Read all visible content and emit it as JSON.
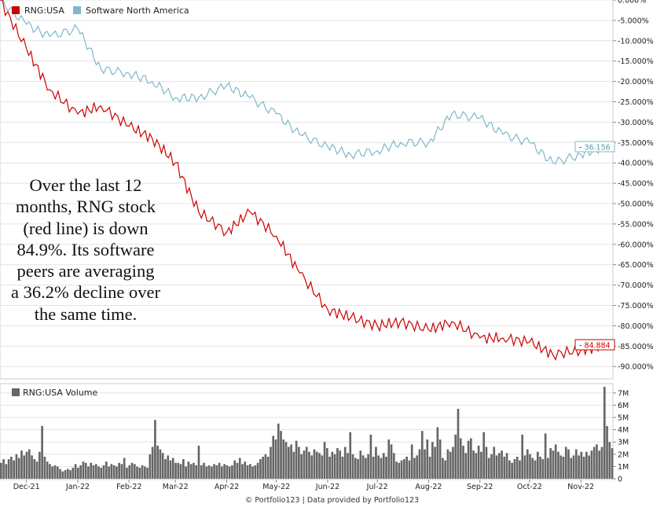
{
  "chart_data": [
    {
      "type": "line",
      "y_unit": "%",
      "ylim": [
        -90,
        0
      ],
      "y_ticks": [
        "0.000%",
        "-5.000%",
        "-10.000%",
        "-15.000%",
        "-20.000%",
        "-25.000%",
        "-30.000%",
        "-35.000%",
        "-40.000%",
        "-45.000%",
        "-50.000%",
        "-55.000%",
        "-60.000%",
        "-65.000%",
        "-70.000%",
        "-75.000%",
        "-80.000%",
        "-85.000%",
        "-90.000%"
      ],
      "y_tick_values": [
        0,
        -5,
        -10,
        -15,
        -20,
        -25,
        -30,
        -35,
        -40,
        -45,
        -50,
        -55,
        -60,
        -65,
        -70,
        -75,
        -80,
        -85,
        -90
      ],
      "grid": true,
      "legend_position": "top-left",
      "x": [
        "2021-11-15",
        "2021-12-01",
        "2021-12-15",
        "2022-01-01",
        "2022-01-15",
        "2022-02-01",
        "2022-02-15",
        "2022-03-01",
        "2022-03-15",
        "2022-04-01",
        "2022-04-15",
        "2022-05-01",
        "2022-05-15",
        "2022-06-01",
        "2022-06-15",
        "2022-07-01",
        "2022-07-15",
        "2022-08-01",
        "2022-08-15",
        "2022-09-01",
        "2022-09-15",
        "2022-10-01",
        "2022-10-15",
        "2022-11-01",
        "2022-11-14"
      ],
      "series": [
        {
          "name": "RNG:USA",
          "color": "#cc0000",
          "values": [
            0,
            -12,
            -22,
            -28,
            -26,
            -31,
            -34,
            -40,
            -52,
            -57,
            -52,
            -58,
            -67,
            -76,
            -78,
            -80,
            -79,
            -81,
            -79,
            -83,
            -83,
            -84,
            -87,
            -86,
            -84.884
          ],
          "last_label": "84.884"
        },
        {
          "name": "Software North America",
          "color": "#7fb7c6",
          "values": [
            0,
            -6,
            -9,
            -7,
            -17,
            -18,
            -20,
            -24,
            -24,
            -21,
            -24,
            -28,
            -33,
            -36,
            -38,
            -37,
            -35,
            -35,
            -28,
            -29,
            -33,
            -35,
            -40,
            -38,
            -36.156
          ],
          "last_label": "36.156"
        }
      ]
    },
    {
      "type": "bar",
      "legend": "RNG:USA Volume",
      "color": "#666666",
      "ylim": [
        0,
        7.6
      ],
      "y_ticks": [
        "7M",
        "6M",
        "5M",
        "4M",
        "3M",
        "2M",
        "1M",
        "0"
      ],
      "y_tick_values": [
        7,
        6,
        5,
        4,
        3,
        2,
        1,
        0
      ],
      "values_millions": [
        1.3,
        1.6,
        1.2,
        1.6,
        1.8,
        1.5,
        2.0,
        1.7,
        2.3,
        1.9,
        2.2,
        2.4,
        1.9,
        1.6,
        1.4,
        2.2,
        4.3,
        1.8,
        1.4,
        1.2,
        1.0,
        1.1,
        1.0,
        0.8,
        0.6,
        0.7,
        0.8,
        0.7,
        0.9,
        1.2,
        0.9,
        1.1,
        1.4,
        1.3,
        1.0,
        1.3,
        1.1,
        1.2,
        1.0,
        0.9,
        1.1,
        1.4,
        1.0,
        1.2,
        1.1,
        1.0,
        1.3,
        1.2,
        1.7,
        0.9,
        1.1,
        1.3,
        1.2,
        1.0,
        0.9,
        1.1,
        1.0,
        0.9,
        2.0,
        2.6,
        4.8,
        2.7,
        2.4,
        2.1,
        1.6,
        1.9,
        1.5,
        1.7,
        1.3,
        1.3,
        1.2,
        1.6,
        1.0,
        1.4,
        1.2,
        1.3,
        1.1,
        2.7,
        1.1,
        1.3,
        1.0,
        1.1,
        1.0,
        1.2,
        1.1,
        1.3,
        1.0,
        1.2,
        1.1,
        1.0,
        1.1,
        1.5,
        1.3,
        1.7,
        1.2,
        1.4,
        1.1,
        1.2,
        1.0,
        1.1,
        1.3,
        1.6,
        1.8,
        2.0,
        1.8,
        2.6,
        3.5,
        3.2,
        4.5,
        3.9,
        3.2,
        3.0,
        2.6,
        2.8,
        2.2,
        3.1,
        2.6,
        2.0,
        2.3,
        2.6,
        2.2,
        1.9,
        2.4,
        2.2,
        2.1,
        1.9,
        3.0,
        2.5,
        1.8,
        2.2,
        2.0,
        2.5,
        2.3,
        1.8,
        2.6,
        2.1,
        3.8,
        2.0,
        1.7,
        1.6,
        2.3,
        1.9,
        1.7,
        2.0,
        3.6,
        1.8,
        2.6,
        1.9,
        1.7,
        2.1,
        1.8,
        3.2,
        2.8,
        2.1,
        1.4,
        1.3,
        1.5,
        1.6,
        1.8,
        1.5,
        2.8,
        1.7,
        1.9,
        2.4,
        3.9,
        2.4,
        3.2,
        1.8,
        3.0,
        2.6,
        4.2,
        3.2,
        1.7,
        1.5,
        2.4,
        2.2,
        2.6,
        3.6,
        5.7,
        3.3,
        2.7,
        2.1,
        3.1,
        3.3,
        2.3,
        2.1,
        2.7,
        2.2,
        3.8,
        2.6,
        1.7,
        2.0,
        2.6,
        1.9,
        2.1,
        2.3,
        1.8,
        2.1,
        1.5,
        1.3,
        1.6,
        1.8,
        1.5,
        3.6,
        1.9,
        2.4,
        2.0,
        1.7,
        1.5,
        2.2,
        1.8,
        1.6,
        3.7,
        1.7,
        2.5,
        2.3,
        2.8,
        2.2,
        1.9,
        1.8,
        2.6,
        2.4,
        1.7,
        1.9,
        2.4,
        1.9,
        2.2,
        1.8,
        2.2,
        1.9,
        2.3,
        2.6,
        2.8,
        2.3,
        2.6,
        7.5,
        4.3,
        3.0,
        2.5
      ]
    }
  ],
  "x_axis": {
    "ticks": [
      "Dec-21",
      "Jan-22",
      "Feb-22",
      "Mar-22",
      "Apr-22",
      "May-22",
      "Jun-22",
      "Jul-22",
      "Aug-22",
      "Sep-22",
      "Oct-22",
      "Nov-22"
    ]
  },
  "annotation": "Over the last 12 months, RNG stock (red line) is down 84.9%. Its software peers are averaging a 36.2% decline over the same time.",
  "footer": "© Portfolio123 | Data provided by Portfolio123"
}
